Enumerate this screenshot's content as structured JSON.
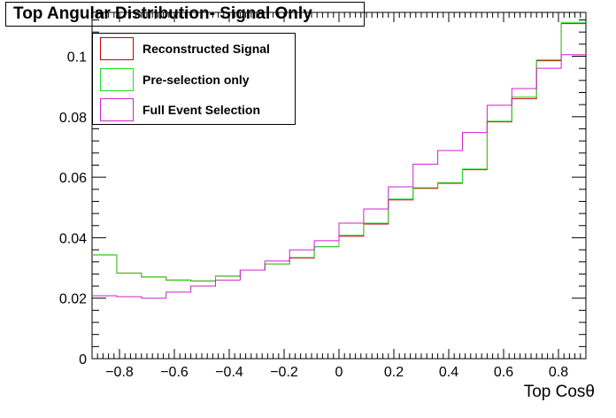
{
  "chart_data": {
    "type": "step-histogram",
    "title": "Top Angular Distribution- Signal Only",
    "xlabel": "Top Cosθ",
    "ylabel": "",
    "xlim": [
      -0.9,
      0.9
    ],
    "ylim": [
      0,
      0.1145
    ],
    "grid": false,
    "legend_position": "top-left",
    "x_ticks": [
      -0.8,
      -0.6,
      -0.4,
      -0.2,
      0,
      0.2,
      0.4,
      0.6,
      0.8
    ],
    "x_tick_labels": [
      "−0.8",
      "−0.6",
      "−0.4",
      "−0.2",
      "0",
      "0.2",
      "0.4",
      "0.6",
      "0.8"
    ],
    "y_ticks": [
      0,
      0.02,
      0.04,
      0.06,
      0.08,
      0.1
    ],
    "y_tick_labels": [
      "0",
      "0.02",
      "0.04",
      "0.06",
      "0.08",
      "0.1"
    ],
    "bin_edges": [
      -0.9,
      -0.81,
      -0.72,
      -0.63,
      -0.54,
      -0.45,
      -0.36,
      -0.27,
      -0.18,
      -0.09,
      0.0,
      0.09,
      0.18,
      0.27,
      0.36,
      0.45,
      0.54,
      0.63,
      0.72,
      0.81,
      0.9
    ],
    "series": [
      {
        "name": "Reconstructed Signal",
        "color": "#cc0000",
        "values": [
          0.0343,
          0.0283,
          0.027,
          0.026,
          0.0257,
          0.0273,
          0.0293,
          0.0313,
          0.0333,
          0.037,
          0.0405,
          0.0445,
          0.0525,
          0.0563,
          0.058,
          0.0625,
          0.0783,
          0.086,
          0.0985,
          0.1108
        ]
      },
      {
        "name": "Pre-selection only",
        "color": "#22dd22",
        "values": [
          0.0343,
          0.0283,
          0.027,
          0.026,
          0.0257,
          0.0273,
          0.0293,
          0.0313,
          0.0335,
          0.037,
          0.0408,
          0.0448,
          0.0528,
          0.0565,
          0.0582,
          0.0627,
          0.0785,
          0.0865,
          0.0988,
          0.1112
        ]
      },
      {
        "name": "Full Event Selection",
        "color": "#cc22cc",
        "values": [
          0.0208,
          0.0205,
          0.02,
          0.022,
          0.024,
          0.026,
          0.0293,
          0.0323,
          0.036,
          0.039,
          0.0448,
          0.0495,
          0.0568,
          0.0643,
          0.0688,
          0.0748,
          0.0838,
          0.0893,
          0.096,
          0.1005
        ]
      }
    ]
  }
}
